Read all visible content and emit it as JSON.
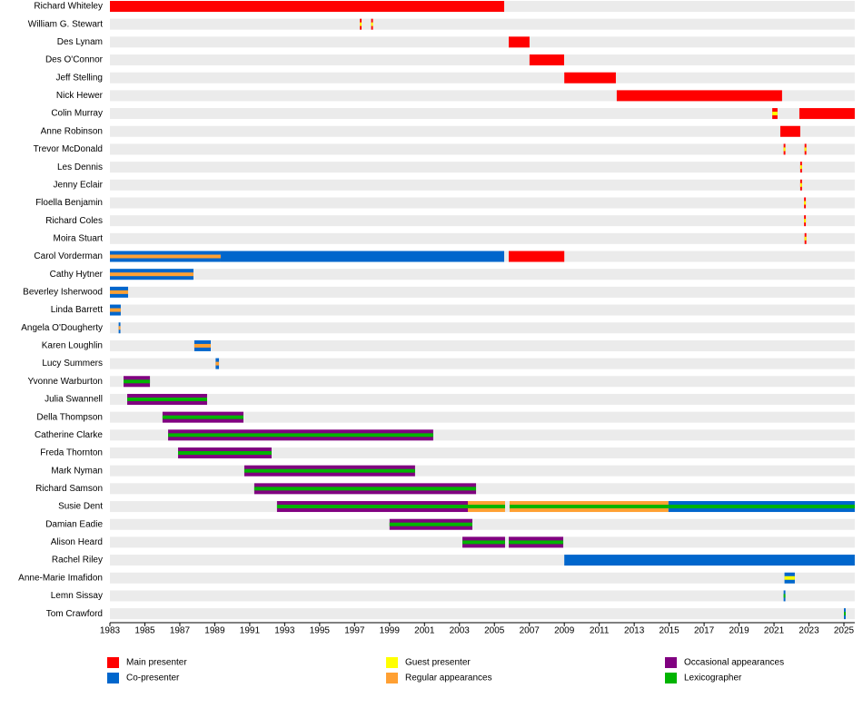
{
  "chart_data": {
    "type": "timeline",
    "xlim": [
      1983,
      2025.62
    ],
    "xticks": [
      1983,
      1985,
      1987,
      1989,
      1991,
      1993,
      1995,
      1997,
      1999,
      2001,
      2003,
      2005,
      2007,
      2009,
      2011,
      2013,
      2015,
      2017,
      2019,
      2021,
      2023,
      2025
    ],
    "roles": [
      {
        "name": "Main presenter",
        "color": "#ff0000"
      },
      {
        "name": "Co-presenter",
        "color": "#0066cc"
      },
      {
        "name": "Guest presenter",
        "color": "#ffff00"
      },
      {
        "name": "Regular appearances",
        "color": "#ffa033"
      },
      {
        "name": "Occasional appearances",
        "color": "#800080"
      },
      {
        "name": "Lexicographer",
        "color": "#00b400"
      }
    ],
    "rows": [
      {
        "name": "Richard Whiteley",
        "bars": [
          {
            "start": 1983,
            "end": 2005.56,
            "role": 0
          }
        ]
      },
      {
        "name": "William G. Stewart",
        "bars": [
          {
            "start": 1997.3,
            "end": 1997.4,
            "role": 0,
            "stripe": 2
          },
          {
            "start": 1997.95,
            "end": 1998.05,
            "role": 0,
            "stripe": 2
          }
        ]
      },
      {
        "name": "Des Lynam",
        "bars": [
          {
            "start": 2005.82,
            "end": 2007.01,
            "role": 0
          }
        ]
      },
      {
        "name": "Des O'Connor",
        "bars": [
          {
            "start": 2007.01,
            "end": 2008.99,
            "role": 0
          }
        ]
      },
      {
        "name": "Jeff Stelling",
        "bars": [
          {
            "start": 2009.0,
            "end": 2011.95,
            "role": 0
          }
        ]
      },
      {
        "name": "Nick Hewer",
        "bars": [
          {
            "start": 2012.0,
            "end": 2021.46,
            "role": 0
          }
        ]
      },
      {
        "name": "Colin Murray",
        "bars": [
          {
            "start": 2020.9,
            "end": 2021.2,
            "role": 0,
            "stripe": 2
          },
          {
            "start": 2022.45,
            "end": 2025.62,
            "role": 0
          }
        ]
      },
      {
        "name": "Anne Robinson",
        "bars": [
          {
            "start": 2021.36,
            "end": 2022.5,
            "role": 0
          }
        ]
      },
      {
        "name": "Trevor McDonald",
        "bars": [
          {
            "start": 2021.55,
            "end": 2021.65,
            "role": 0,
            "stripe": 2
          },
          {
            "start": 2022.75,
            "end": 2022.85,
            "role": 0,
            "stripe": 2
          }
        ]
      },
      {
        "name": "Les Dennis",
        "bars": [
          {
            "start": 2022.5,
            "end": 2022.6,
            "role": 0,
            "stripe": 2
          }
        ]
      },
      {
        "name": "Jenny Eclair",
        "bars": [
          {
            "start": 2022.5,
            "end": 2022.6,
            "role": 0,
            "stripe": 2
          }
        ]
      },
      {
        "name": "Floella Benjamin",
        "bars": [
          {
            "start": 2022.72,
            "end": 2022.82,
            "role": 0,
            "stripe": 2
          }
        ]
      },
      {
        "name": "Richard Coles",
        "bars": [
          {
            "start": 2022.72,
            "end": 2022.82,
            "role": 0,
            "stripe": 2
          }
        ]
      },
      {
        "name": "Moira Stuart",
        "bars": [
          {
            "start": 2022.75,
            "end": 2022.85,
            "role": 0,
            "stripe": 2
          }
        ]
      },
      {
        "name": "Carol Vorderman",
        "bars": [
          {
            "start": 1983,
            "end": 1989.34,
            "role": 1,
            "stripe": 3
          },
          {
            "start": 1989.34,
            "end": 2005.56,
            "role": 1
          },
          {
            "start": 2005.82,
            "end": 2009.0,
            "role": 0
          }
        ]
      },
      {
        "name": "Cathy Hytner",
        "bars": [
          {
            "start": 1983,
            "end": 1987.78,
            "role": 1,
            "stripe": 3
          }
        ]
      },
      {
        "name": "Beverley Isherwood",
        "bars": [
          {
            "start": 1983,
            "end": 1984.04,
            "role": 1,
            "stripe": 3
          }
        ]
      },
      {
        "name": "Linda Barrett",
        "bars": [
          {
            "start": 1983,
            "end": 1983.62,
            "role": 1,
            "stripe": 3
          }
        ]
      },
      {
        "name": "Angela O'Dougherty",
        "bars": [
          {
            "start": 1983.5,
            "end": 1983.6,
            "role": 1,
            "stripe": 3
          }
        ]
      },
      {
        "name": "Karen Loughlin",
        "bars": [
          {
            "start": 1987.83,
            "end": 1988.77,
            "role": 1,
            "stripe": 3
          }
        ]
      },
      {
        "name": "Lucy Summers",
        "bars": [
          {
            "start": 1989.05,
            "end": 1989.24,
            "role": 1,
            "stripe": 3
          }
        ]
      },
      {
        "name": "Yvonne Warburton",
        "bars": [
          {
            "start": 1983.78,
            "end": 1985.29,
            "role": 4,
            "stripe": 5
          }
        ]
      },
      {
        "name": "Julia Swannell",
        "bars": [
          {
            "start": 1983.99,
            "end": 1988.56,
            "role": 4,
            "stripe": 5
          }
        ]
      },
      {
        "name": "Della Thompson",
        "bars": [
          {
            "start": 1986.01,
            "end": 1990.64,
            "role": 4,
            "stripe": 5
          }
        ]
      },
      {
        "name": "Catherine Clarke",
        "bars": [
          {
            "start": 1986.33,
            "end": 2001.5,
            "role": 4,
            "stripe": 5
          }
        ]
      },
      {
        "name": "Freda Thornton",
        "bars": [
          {
            "start": 1986.9,
            "end": 1992.25,
            "role": 4,
            "stripe": 5
          }
        ]
      },
      {
        "name": "Mark Nyman",
        "bars": [
          {
            "start": 1990.69,
            "end": 2000.46,
            "role": 4,
            "stripe": 5
          }
        ]
      },
      {
        "name": "Richard Samson",
        "bars": [
          {
            "start": 1991.26,
            "end": 2003.95,
            "role": 4,
            "stripe": 5
          }
        ]
      },
      {
        "name": "Susie Dent",
        "bars": [
          {
            "start": 1992.56,
            "end": 2003.48,
            "role": 4,
            "stripe": 5
          },
          {
            "start": 2003.48,
            "end": 2005.61,
            "role": 3,
            "stripe": 5
          },
          {
            "start": 2005.87,
            "end": 2014.96,
            "role": 3,
            "stripe": 5
          },
          {
            "start": 2014.96,
            "end": 2025.62,
            "role": 1,
            "stripe": 5
          }
        ]
      },
      {
        "name": "Damian Eadie",
        "bars": [
          {
            "start": 1999.0,
            "end": 2003.74,
            "role": 4,
            "stripe": 5
          }
        ]
      },
      {
        "name": "Alison Heard",
        "bars": [
          {
            "start": 2003.17,
            "end": 2005.61,
            "role": 4,
            "stripe": 5
          },
          {
            "start": 2005.82,
            "end": 2008.94,
            "role": 4,
            "stripe": 5
          }
        ]
      },
      {
        "name": "Rachel Riley",
        "bars": [
          {
            "start": 2009.0,
            "end": 2025.62,
            "role": 1
          }
        ]
      },
      {
        "name": "Anne-Marie Imafidon",
        "bars": [
          {
            "start": 2021.6,
            "end": 2022.19,
            "role": 1,
            "stripe": 2
          }
        ]
      },
      {
        "name": "Lemn Sissay",
        "bars": [
          {
            "start": 2021.55,
            "end": 2021.65,
            "role": 1,
            "stripe": 5
          }
        ]
      },
      {
        "name": "Tom Crawford",
        "bars": [
          {
            "start": 2025.0,
            "end": 2025.1,
            "role": 1,
            "stripe": 5
          }
        ]
      }
    ]
  }
}
